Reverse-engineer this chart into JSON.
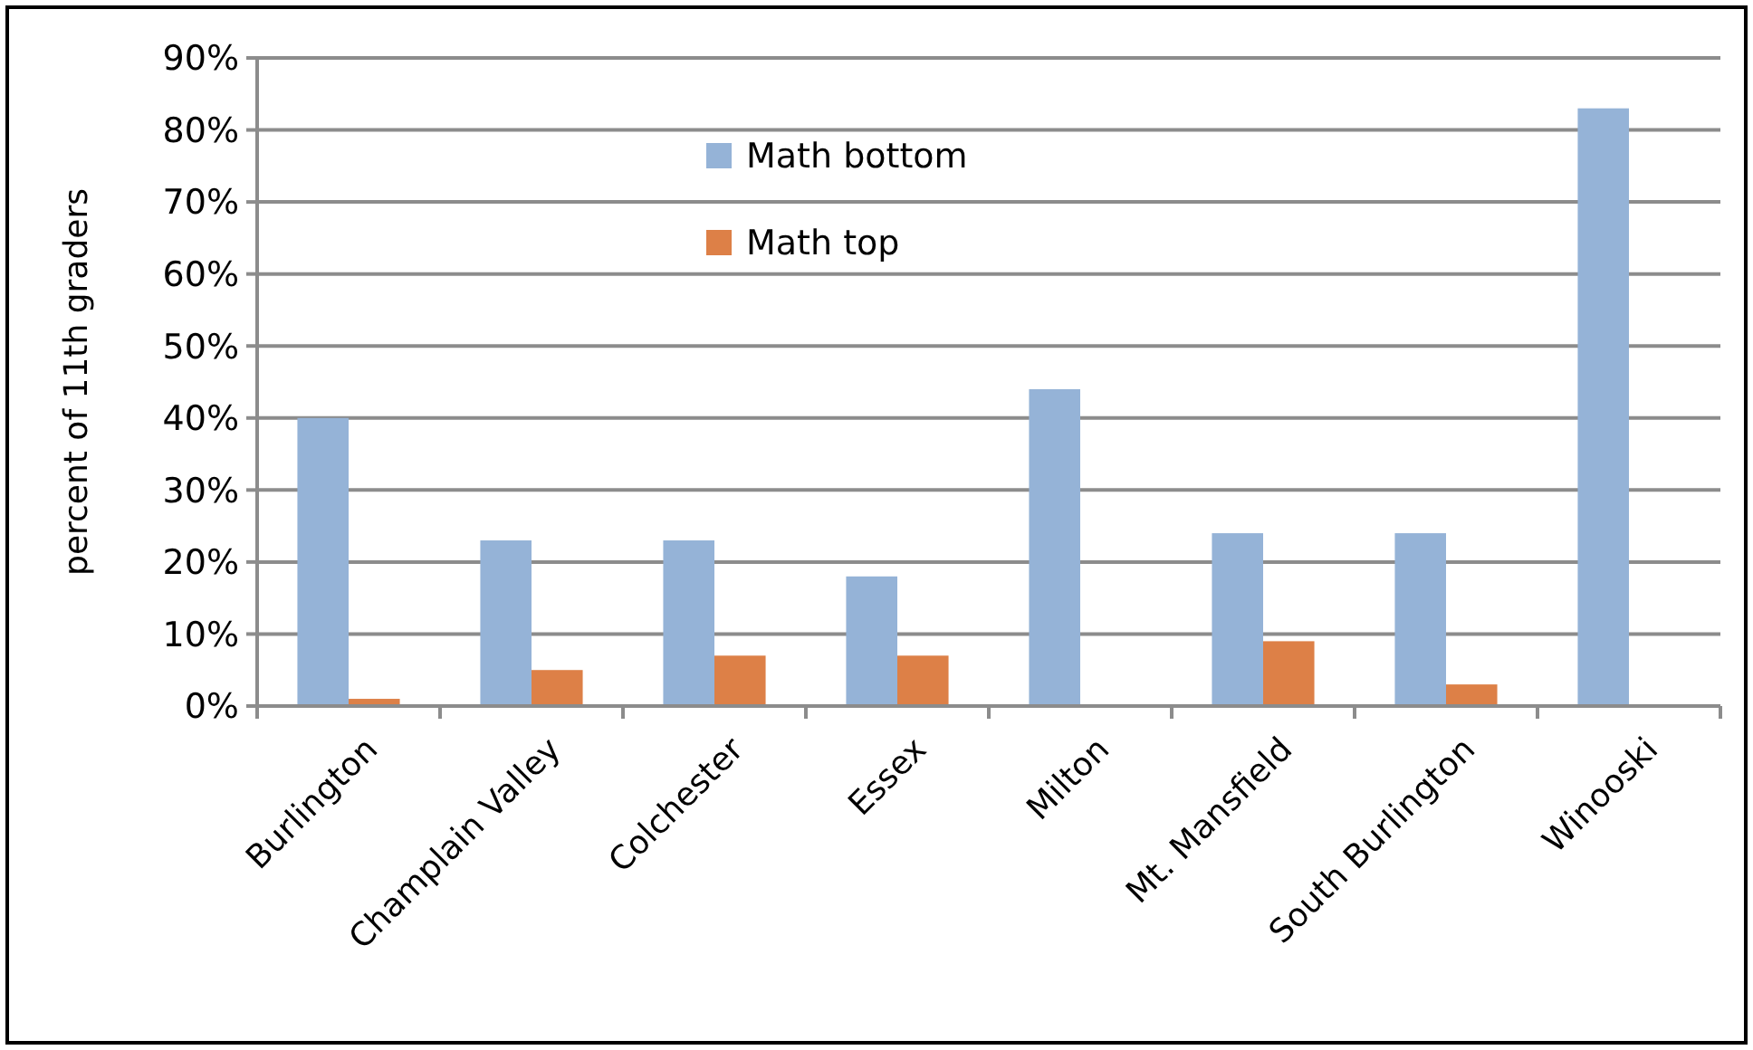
{
  "chart_data": {
    "type": "bar",
    "ylabel": "percent of 11th graders",
    "categories": [
      "Burlington",
      "Champlain Valley",
      "Colchester",
      "Essex",
      "Milton",
      "Mt. Mansfield",
      "South Burlington",
      "Winooski"
    ],
    "series": [
      {
        "name": "Math bottom",
        "color": "#95b3d7",
        "values": [
          40,
          23,
          23,
          18,
          44,
          24,
          24,
          83
        ]
      },
      {
        "name": "Math top",
        "color": "#dd8047",
        "values": [
          1,
          5,
          7,
          7,
          0,
          9,
          3,
          0
        ]
      }
    ],
    "ylim": [
      0,
      90
    ],
    "yticks": [
      {
        "value": 0,
        "label": "0%"
      },
      {
        "value": 10,
        "label": "10%"
      },
      {
        "value": 20,
        "label": "20%"
      },
      {
        "value": 30,
        "label": "30%"
      },
      {
        "value": 40,
        "label": "40%"
      },
      {
        "value": 50,
        "label": "50%"
      },
      {
        "value": 60,
        "label": "60%"
      },
      {
        "value": 70,
        "label": "70%"
      },
      {
        "value": 80,
        "label": "80%"
      },
      {
        "value": 90,
        "label": "90%"
      }
    ],
    "grid": "y",
    "legend": "top"
  }
}
